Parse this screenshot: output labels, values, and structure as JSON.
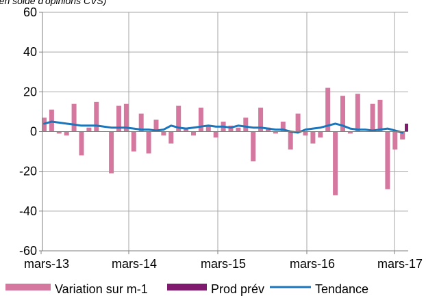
{
  "chart_data": {
    "type": "bar",
    "subtitle": "(en solde d'opinions CVS)",
    "ylim": [
      -60,
      60
    ],
    "y_ticks": [
      "60",
      "40",
      "20",
      "0",
      "-20",
      "-40",
      "-60"
    ],
    "x_tick_labels": [
      "mars-13",
      "mars-14",
      "mars-15",
      "mars-16",
      "mars-17"
    ],
    "grid": true,
    "legend_position": "bottom",
    "colors": {
      "variation": "#d4789f",
      "prod_prev": "#7f1a6e",
      "tendance": "#1b75bb"
    },
    "series": [
      {
        "name": "Variation sur m-1",
        "type": "bar",
        "values": [
          7,
          11,
          -1,
          -2,
          14,
          -12,
          2,
          15,
          0,
          -21,
          13,
          14,
          -10,
          9,
          -11,
          6,
          -2,
          -6,
          13,
          2,
          -2,
          12,
          3,
          -3,
          5,
          3,
          2,
          7,
          -15,
          12,
          2,
          -1,
          5,
          -9,
          9,
          -2,
          -6,
          -3,
          22,
          -32,
          18,
          -1,
          19,
          0,
          14,
          16,
          -29,
          -9,
          -4
        ]
      },
      {
        "name": "Prod prév",
        "type": "bar",
        "values": [
          null,
          null,
          null,
          null,
          null,
          null,
          null,
          null,
          null,
          null,
          null,
          null,
          null,
          null,
          null,
          null,
          null,
          null,
          null,
          null,
          null,
          null,
          null,
          null,
          null,
          null,
          null,
          null,
          null,
          null,
          null,
          null,
          null,
          null,
          null,
          null,
          null,
          null,
          null,
          null,
          null,
          null,
          null,
          null,
          null,
          null,
          null,
          null,
          null,
          4
        ]
      },
      {
        "name": "Tendance",
        "type": "line",
        "values": [
          4,
          5,
          4.5,
          4,
          3.5,
          3,
          3,
          3,
          2.5,
          2,
          2,
          2,
          1.5,
          1,
          1,
          0.5,
          1,
          3,
          2,
          1.5,
          2,
          2.5,
          3,
          2.5,
          2.5,
          2,
          3,
          2.5,
          2,
          2,
          1.5,
          1,
          1,
          0,
          -0.5,
          1,
          1.5,
          2,
          3,
          4,
          3,
          1.5,
          1,
          1,
          0.5,
          1,
          1.5,
          0.5,
          -0.5
        ]
      }
    ]
  }
}
